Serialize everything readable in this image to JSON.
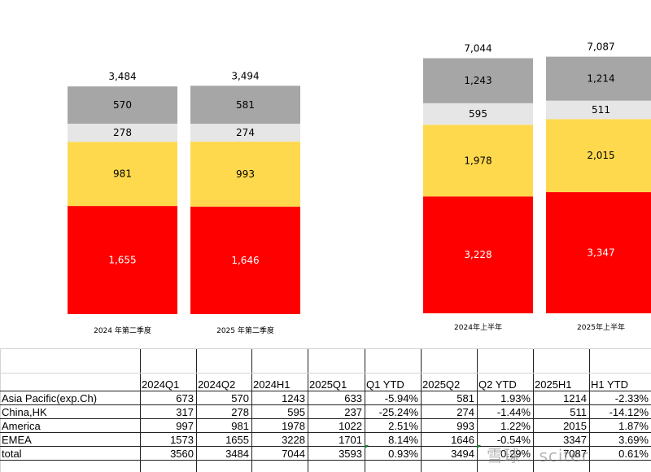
{
  "chart_data": [
    {
      "type": "bar",
      "stacked": true,
      "categories": [
        "2024 年第二季度",
        "2025 年第二季度"
      ],
      "series": [
        {
          "name": "EMEA",
          "values": [
            1655,
            1646
          ],
          "color": "#ff0000",
          "labels": [
            "1,655",
            "1,646"
          ]
        },
        {
          "name": "America",
          "values": [
            981,
            993
          ],
          "color": "#ffd94d",
          "labels": [
            "981",
            "993"
          ]
        },
        {
          "name": "China,HK",
          "values": [
            278,
            274
          ],
          "color": "#e6e6e6",
          "labels": [
            "278",
            "274"
          ]
        },
        {
          "name": "Asia Pacific(exp.Ch)",
          "values": [
            570,
            581
          ],
          "color": "#a6a6a6",
          "labels": [
            "570",
            "581"
          ]
        }
      ],
      "totals": [
        "3,484",
        "3,494"
      ],
      "grid": false,
      "legend": "none"
    },
    {
      "type": "bar",
      "stacked": true,
      "categories": [
        "2024年上半年",
        "2025年上半年"
      ],
      "series": [
        {
          "name": "EMEA",
          "values": [
            3228,
            3347
          ],
          "color": "#ff0000",
          "labels": [
            "3,228",
            "3,347"
          ]
        },
        {
          "name": "America",
          "values": [
            1978,
            2015
          ],
          "color": "#ffd94d",
          "labels": [
            "1,978",
            "2,015"
          ]
        },
        {
          "name": "China,HK",
          "values": [
            595,
            511
          ],
          "color": "#e6e6e6",
          "labels": [
            "595",
            "511"
          ]
        },
        {
          "name": "Asia Pacific(exp.Ch)",
          "values": [
            1243,
            1214
          ],
          "color": "#a6a6a6",
          "labels": [
            "1,243",
            "1,214"
          ]
        }
      ],
      "totals": [
        "7,044",
        "7,087"
      ],
      "grid": false,
      "legend": "none"
    }
  ],
  "table": {
    "headers": [
      "",
      "2024Q1",
      "2024Q2",
      "2024H1",
      "2025Q1",
      "Q1 YTD",
      "2025Q2",
      "Q2 YTD",
      "2025H1",
      "H1 YTD"
    ],
    "rows": [
      [
        "Asia Pacific(exp.Ch)",
        "673",
        "570",
        "1243",
        "633",
        "-5.94%",
        "581",
        "1.93%",
        "1214",
        "-2.33%"
      ],
      [
        "China,HK",
        "317",
        "278",
        "595",
        "237",
        "-25.24%",
        "274",
        "-1.44%",
        "511",
        "-14.12%"
      ],
      [
        "America",
        "997",
        "981",
        "1978",
        "1022",
        "2.51%",
        "993",
        "1.22%",
        "2015",
        "1.87%"
      ],
      [
        "EMEA",
        "1573",
        "1655",
        "3228",
        "1701",
        "8.14%",
        "1646",
        "-0.54%",
        "3347",
        "3.69%"
      ],
      [
        "total",
        "3560",
        "3484",
        "7044",
        "3593",
        "0.93%",
        "3494",
        "0.29%",
        "7087",
        "0.61%"
      ]
    ]
  },
  "watermark": "雪球 : sciter"
}
